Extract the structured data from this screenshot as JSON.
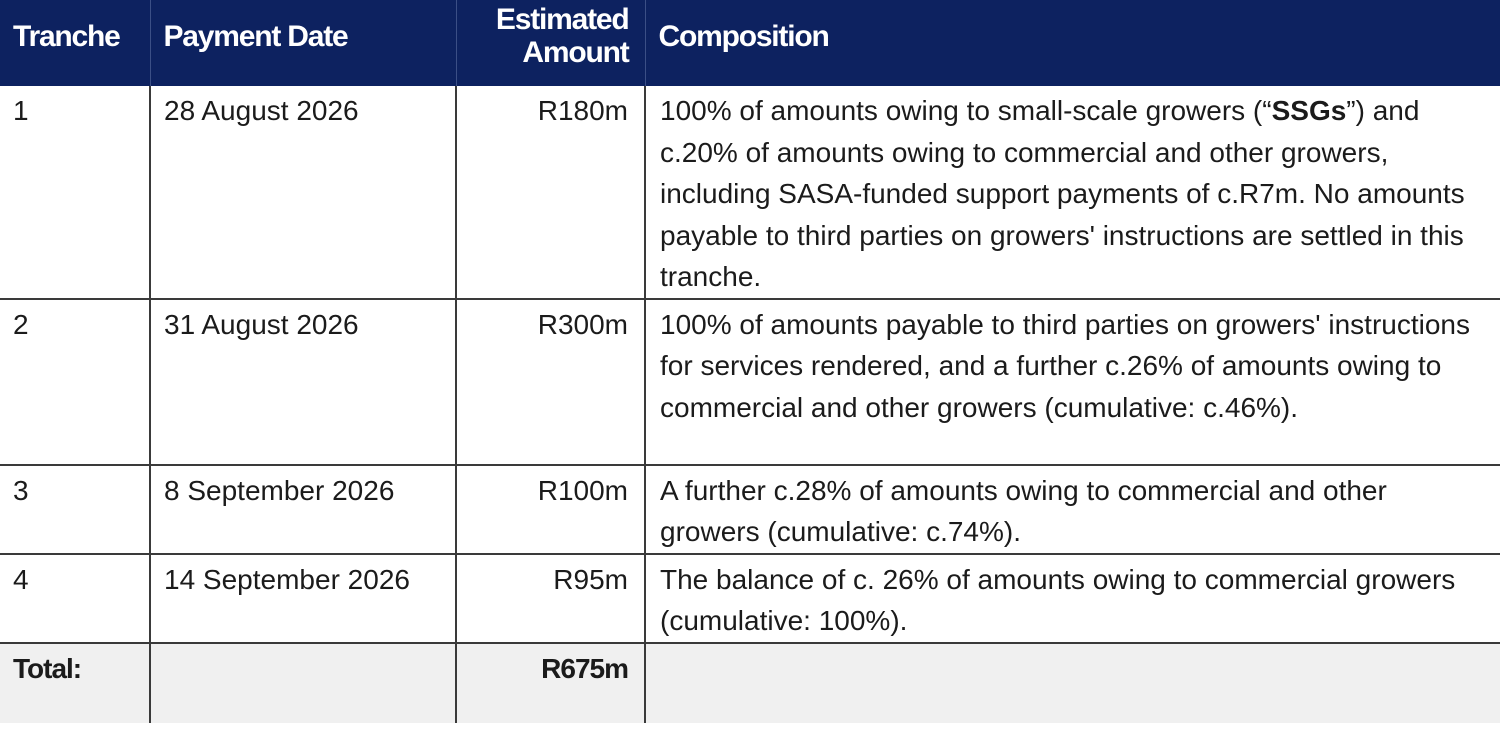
{
  "table": {
    "headers": {
      "tranche": "Tranche",
      "payment_date": "Payment Date",
      "amount_line1": "Estimated",
      "amount_line2": "Amount",
      "composition": "Composition"
    },
    "rows": [
      {
        "tranche": "1",
        "date": "28 August 2026",
        "amount": "R180m",
        "composition_before": "100% of amounts owing to small-scale growers (“",
        "composition_bold": "SSGs",
        "composition_after": "”) and c.20% of amounts owing to commercial and other growers, including SASA-funded support payments of c.R7m. No amounts payable to third parties on growers' instructions are settled in this tranche."
      },
      {
        "tranche": "2",
        "date": "31 August 2026",
        "amount": "R300m",
        "composition": "100% of amounts payable to third parties on growers' instructions for services rendered, and a further c.26% of amounts owing to commercial and other growers (cumulative: c.46%)."
      },
      {
        "tranche": "3",
        "date": "8 September 2026",
        "amount": "R100m",
        "composition": "A further c.28% of amounts owing to commercial and other growers (cumulative: c.74%)."
      },
      {
        "tranche": "4",
        "date": "14 September 2026",
        "amount": "R95m",
        "composition": "The balance of c. 26% of amounts owing to commercial growers (cumulative: 100%)."
      }
    ],
    "total": {
      "label": "Total:",
      "amount": "R675m"
    }
  }
}
